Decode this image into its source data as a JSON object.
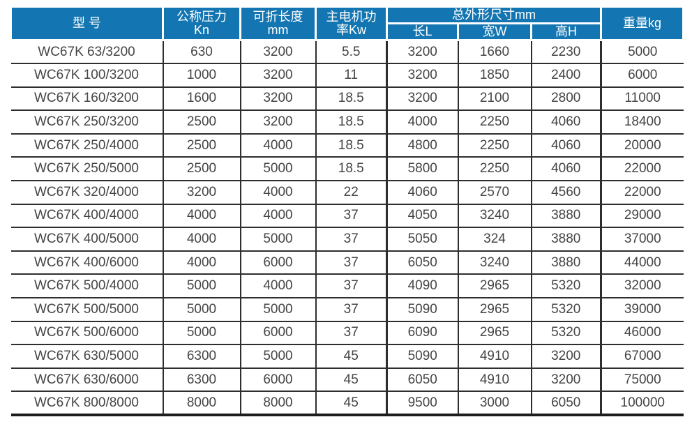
{
  "table": {
    "header": {
      "model": "型 号",
      "pressure": [
        "公称压力",
        "Kn"
      ],
      "fold_length": [
        "可折长度",
        "mm"
      ],
      "motor_power": [
        "主电机功",
        "率Kw"
      ],
      "dimensions_group": "总外形尺寸mm",
      "dim_length": "长L",
      "dim_width": "宽W",
      "dim_height": "高H",
      "weight": "重量kg"
    },
    "rows": [
      [
        "WC67K 63/3200",
        "630",
        "3200",
        "5.5",
        "3200",
        "1660",
        "2230",
        "5000"
      ],
      [
        "WC67K 100/3200",
        "1000",
        "3200",
        "11",
        "3200",
        "1850",
        "2400",
        "6000"
      ],
      [
        "WC67K 160/3200",
        "1600",
        "3200",
        "18.5",
        "3200",
        "2100",
        "2800",
        "11000"
      ],
      [
        "WC67K 250/3200",
        "2500",
        "3200",
        "18.5",
        "4000",
        "2250",
        "4060",
        "18400"
      ],
      [
        "WC67K 250/4000",
        "2500",
        "4000",
        "18.5",
        "4800",
        "2250",
        "4060",
        "20000"
      ],
      [
        "WC67K 250/5000",
        "2500",
        "5000",
        "18.5",
        "5800",
        "2250",
        "4060",
        "22000"
      ],
      [
        "WC67K 320/4000",
        "3200",
        "4000",
        "22",
        "4060",
        "2570",
        "4560",
        "22000"
      ],
      [
        "WC67K 400/4000",
        "4000",
        "4000",
        "37",
        "4050",
        "3240",
        "3880",
        "29000"
      ],
      [
        "WC67K 400/5000",
        "4000",
        "5000",
        "37",
        "5050",
        "324",
        "3880",
        "37000"
      ],
      [
        "WC67K 400/6000",
        "4000",
        "6000",
        "37",
        "6050",
        "3240",
        "3880",
        "44000"
      ],
      [
        "WC67K 500/4000",
        "5000",
        "4000",
        "37",
        "4090",
        "2965",
        "5320",
        "32000"
      ],
      [
        "WC67K 500/5000",
        "5000",
        "5000",
        "37",
        "5090",
        "2965",
        "5320",
        "39000"
      ],
      [
        "WC67K 500/6000",
        "5000",
        "6000",
        "37",
        "6090",
        "2965",
        "5320",
        "46000"
      ],
      [
        "WC67K 630/5000",
        "6300",
        "5000",
        "45",
        "5090",
        "4910",
        "3200",
        "67000"
      ],
      [
        "WC67K 630/6000",
        "6300",
        "6000",
        "45",
        "6050",
        "4910",
        "3200",
        "75000"
      ],
      [
        "WC67K 800/8000",
        "8000",
        "8000",
        "45",
        "9500",
        "3000",
        "6050",
        "100000"
      ]
    ]
  },
  "colors": {
    "header_bg": "#1375b1",
    "header_text": "#ffffff",
    "grid_line": "#2e2e2e",
    "body_text": "#454545"
  }
}
